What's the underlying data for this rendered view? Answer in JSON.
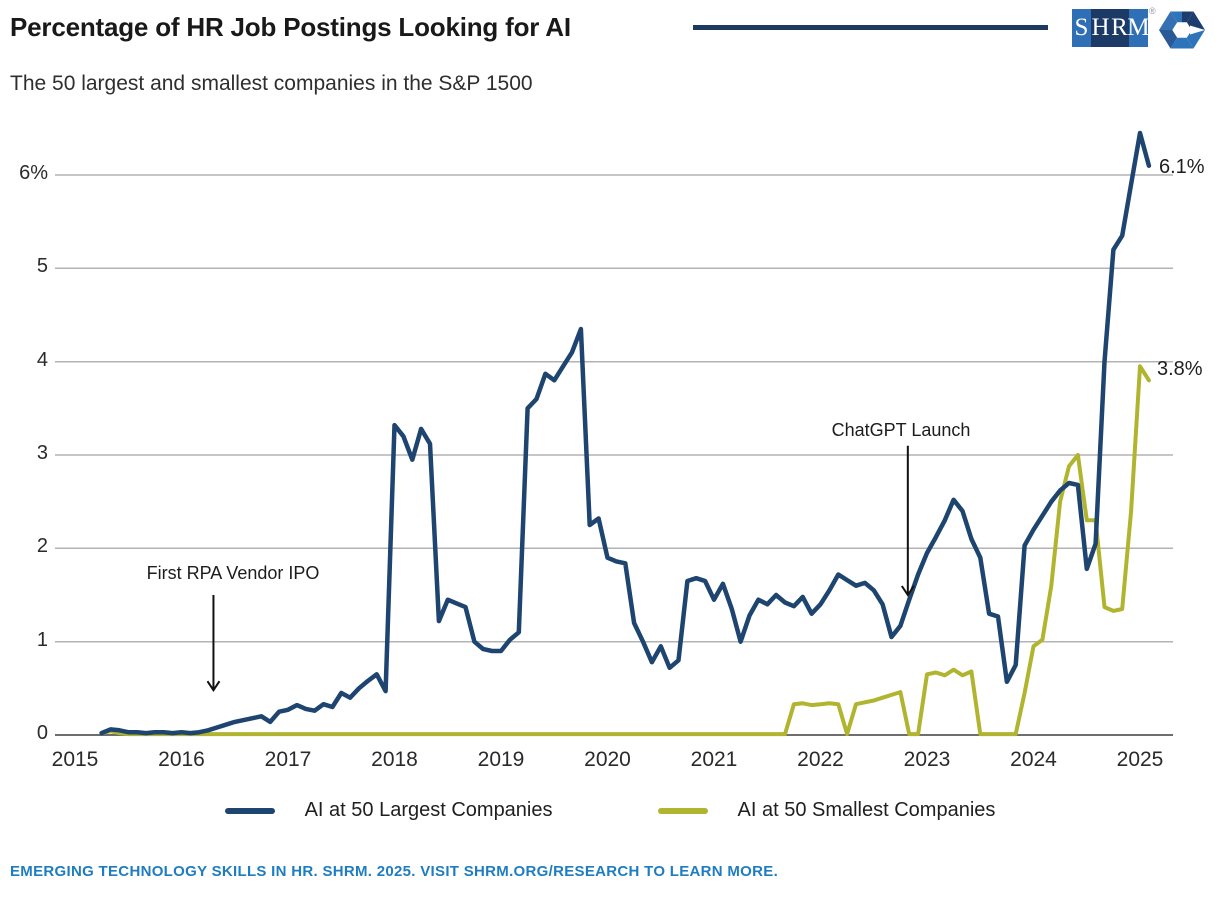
{
  "header": {
    "title": "Percentage of HR Job Postings Looking for AI",
    "subtitle": "The 50 largest and smallest companies in the S&P 1500",
    "logo": {
      "letters": [
        "S",
        "H",
        "R",
        "M"
      ],
      "registered": "®",
      "cell_colors": [
        "#2e6fb5",
        "#1b3a66",
        "#1b3a66",
        "#2e6fb5"
      ]
    }
  },
  "footer": {
    "text": "EMERGING TECHNOLOGY SKILLS IN HR. SHRM. 2025. VISIT SHRM.ORG/RESEARCH TO LEARN MORE.",
    "color": "#1e7dc1"
  },
  "chart_data": {
    "type": "line",
    "title": "Percentage of HR Job Postings Looking for AI",
    "subtitle": "The 50 largest and smallest companies in the S&P 1500",
    "x_start_year": 2015,
    "x_start_month": 4,
    "x_step_months": 1,
    "x_tick_labels": [
      "2015",
      "2016",
      "2017",
      "2018",
      "2019",
      "2020",
      "2021",
      "2022",
      "2023",
      "2024",
      "2025"
    ],
    "y_ticks": [
      "0",
      "1",
      "2",
      "3",
      "4",
      "5",
      "6%"
    ],
    "ylim": [
      0,
      6.6
    ],
    "xlim": [
      2014.85,
      2025.35
    ],
    "grid": true,
    "grid_color": "#b3b3b3",
    "axis_color": "#6e6e6e",
    "legend_position": "bottom",
    "series": [
      {
        "id": "largest",
        "name": "AI at 50 Largest Companies",
        "color": "#1e4470",
        "width": 4.5,
        "end_label": "6.1%",
        "values": [
          0.02,
          0.06,
          0.05,
          0.03,
          0.03,
          0.02,
          0.03,
          0.03,
          0.02,
          0.03,
          0.02,
          0.03,
          0.05,
          0.08,
          0.11,
          0.14,
          0.16,
          0.18,
          0.2,
          0.14,
          0.25,
          0.27,
          0.32,
          0.28,
          0.26,
          0.33,
          0.3,
          0.45,
          0.4,
          0.5,
          0.58,
          0.65,
          0.47,
          3.32,
          3.2,
          2.95,
          3.28,
          3.12,
          1.22,
          1.45,
          1.41,
          1.37,
          1.0,
          0.92,
          0.9,
          0.9,
          1.02,
          1.1,
          3.5,
          3.6,
          3.87,
          3.8,
          3.95,
          4.1,
          4.35,
          2.25,
          2.32,
          1.9,
          1.86,
          1.84,
          1.2,
          1.0,
          0.78,
          0.95,
          0.72,
          0.8,
          1.65,
          1.68,
          1.65,
          1.45,
          1.62,
          1.35,
          1.0,
          1.28,
          1.45,
          1.4,
          1.5,
          1.42,
          1.38,
          1.48,
          1.3,
          1.4,
          1.55,
          1.72,
          1.66,
          1.6,
          1.63,
          1.55,
          1.4,
          1.05,
          1.17,
          1.45,
          1.72,
          1.95,
          2.12,
          2.3,
          2.52,
          2.4,
          2.1,
          1.9,
          1.3,
          1.27,
          0.57,
          0.75,
          2.03,
          2.2,
          2.35,
          2.5,
          2.62,
          2.7,
          2.68,
          1.78,
          2.05,
          4.0,
          5.2,
          5.35,
          5.9,
          6.45,
          6.1
        ]
      },
      {
        "id": "smallest",
        "name": "AI at 50 Smallest Companies",
        "color": "#b1b42e",
        "width": 4,
        "end_label": "3.8%",
        "values": [
          0.02,
          0.04,
          0.02,
          0.01,
          0.01,
          0.01,
          0.01,
          0.01,
          0.01,
          0.01,
          0.01,
          0.01,
          0.01,
          0.01,
          0.01,
          0.01,
          0.01,
          0.01,
          0.01,
          0.01,
          0.01,
          0.01,
          0.01,
          0.01,
          0.01,
          0.01,
          0.01,
          0.01,
          0.01,
          0.01,
          0.01,
          0.01,
          0.01,
          0.01,
          0.01,
          0.01,
          0.01,
          0.01,
          0.01,
          0.01,
          0.01,
          0.01,
          0.01,
          0.01,
          0.01,
          0.01,
          0.01,
          0.01,
          0.01,
          0.01,
          0.01,
          0.01,
          0.01,
          0.01,
          0.01,
          0.01,
          0.01,
          0.01,
          0.01,
          0.01,
          0.01,
          0.01,
          0.01,
          0.01,
          0.01,
          0.01,
          0.01,
          0.01,
          0.01,
          0.01,
          0.01,
          0.01,
          0.01,
          0.01,
          0.01,
          0.01,
          0.01,
          0.01,
          0.33,
          0.34,
          0.32,
          0.33,
          0.34,
          0.33,
          0.01,
          0.33,
          0.35,
          0.37,
          0.4,
          0.43,
          0.46,
          0.01,
          0.01,
          0.65,
          0.67,
          0.64,
          0.7,
          0.64,
          0.68,
          0.01,
          0.01,
          0.01,
          0.01,
          0.01,
          0.45,
          0.95,
          1.02,
          1.6,
          2.5,
          2.88,
          3.0,
          2.3,
          2.3,
          1.37,
          1.33,
          1.35,
          2.4,
          3.95,
          3.8
        ]
      }
    ],
    "annotations": [
      {
        "label": "First RPA Vendor IPO",
        "x": 2016.3,
        "y_from": 1.5,
        "y_to": 0.48
      },
      {
        "label": "ChatGPT Launch",
        "x": 2022.82,
        "y_from": 3.1,
        "y_to": 1.5
      }
    ]
  }
}
